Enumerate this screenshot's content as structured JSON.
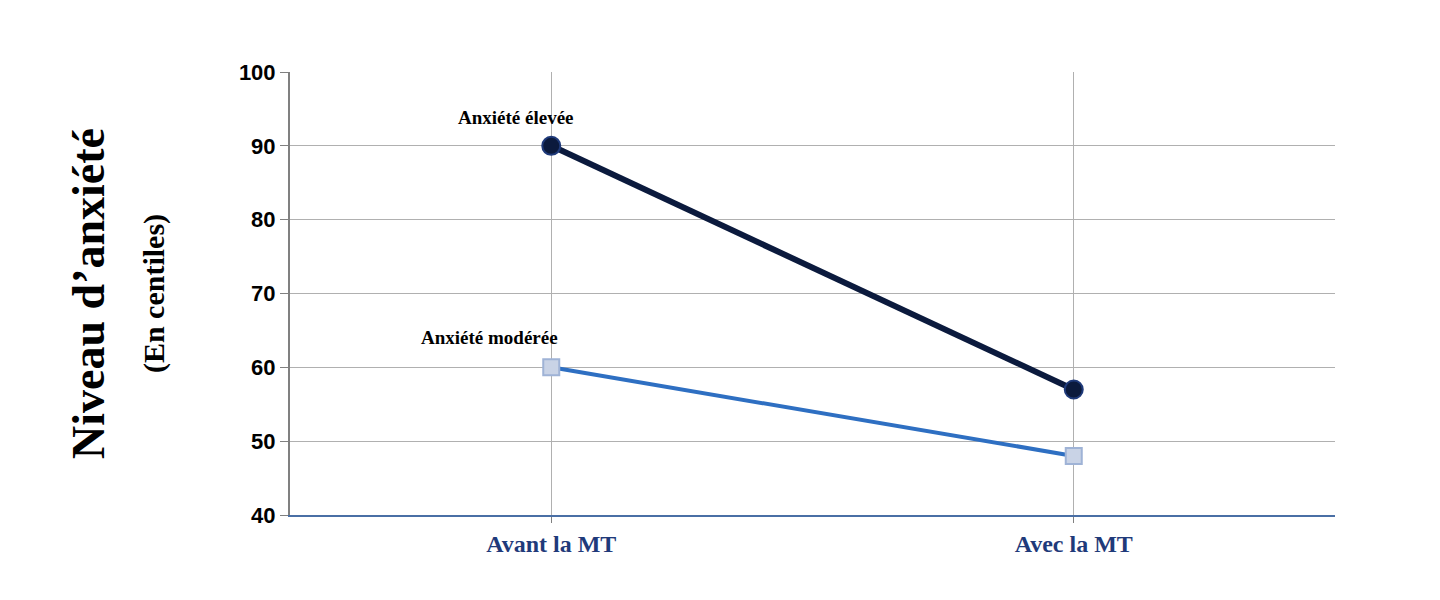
{
  "chart_data": {
    "type": "line",
    "ylabel": [
      "Niveau d’anxiété",
      "(En centiles)"
    ],
    "categories": [
      "Avant la MT",
      "Avec la MT"
    ],
    "series": [
      {
        "name": "Anxiété élevée",
        "color": "#0b1a3d",
        "marker": "circle",
        "line_style": "solid",
        "values": [
          90,
          57
        ]
      },
      {
        "name": "Anxiété modérée",
        "color": "#2e6fc2",
        "marker": "square",
        "line_style": "solid",
        "values": [
          60,
          48
        ]
      }
    ],
    "ylim": [
      40,
      100
    ],
    "yticks": [
      40,
      50,
      60,
      70,
      80,
      90,
      100
    ],
    "grid": true
  }
}
